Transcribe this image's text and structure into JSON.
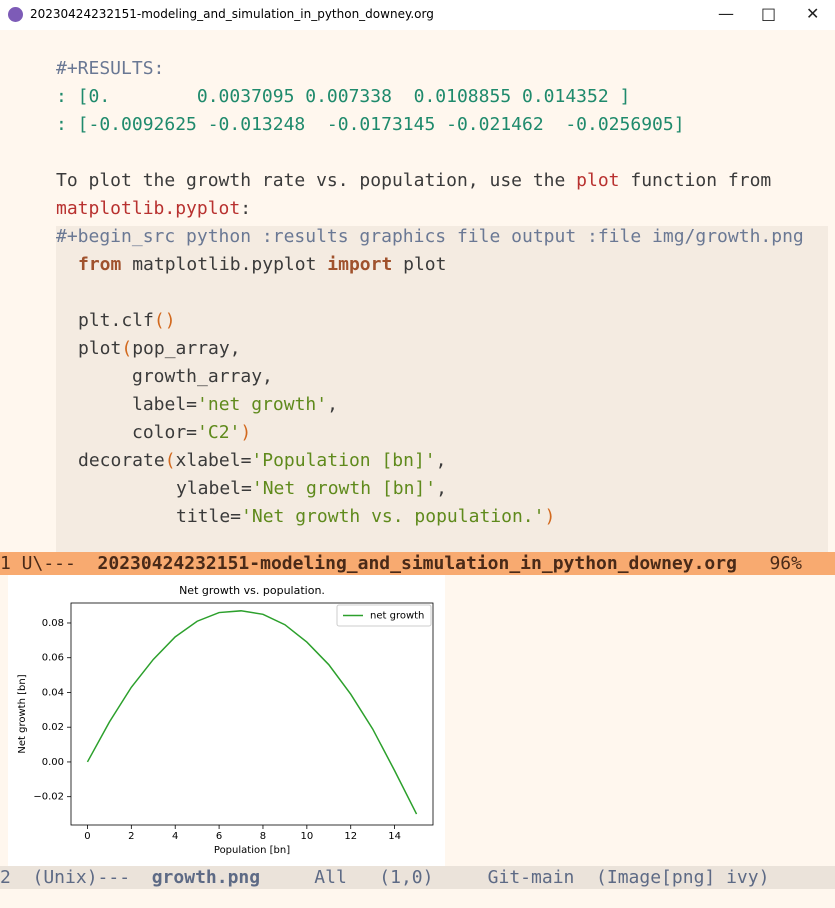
{
  "window": {
    "title": "20230424232151-modeling_and_simulation_in_python_downey.org"
  },
  "buffer": {
    "lines": [
      [
        "#+RESULTS:"
      ],
      [
        ": [0.        0.0037095 0.007338  0.0108855 0.014352 ]"
      ],
      [
        ": [-0.0092625 -0.013248  -0.0173145 -0.021462  -0.0256905]"
      ],
      [
        "To plot the growth rate vs. population, use the ",
        "plot",
        " function from"
      ],
      [
        "matplotlib.pyplot",
        ":"
      ],
      [
        "#+begin_src python :results graphics file output :file img/growth.png"
      ],
      [
        "from",
        " matplotlib.pyplot ",
        "import",
        " plot"
      ],
      [
        "plt.clf",
        "()"
      ],
      [
        "plot",
        "(",
        "pop_array,"
      ],
      [
        "growth_array,"
      ],
      [
        "label=",
        "'net growth'",
        ","
      ],
      [
        "color=",
        "'C2'",
        ")"
      ],
      [
        "decorate",
        "(",
        "xlabel=",
        "'Population [bn]'",
        ","
      ],
      [
        "ylabel=",
        "'Net growth [bn]'",
        ","
      ],
      [
        "title=",
        "'Net growth vs. population.'",
        ")"
      ]
    ]
  },
  "mode_lines": [
    [
      "1 U\\---  ",
      "20230424232151-modeling_and_simulation_in_python_downey.org",
      "   96%"
    ],
    [
      "2  (Unix)---  ",
      "growth.png",
      "     All   (1,0)     Git-main  (Image[png] ivy)"
    ]
  ],
  "chart_data": {
    "type": "line",
    "title": "Net growth vs. population.",
    "x_label": "Population [bn]",
    "y_label": "Net growth [bn]",
    "x": [
      0,
      1,
      2,
      3,
      4,
      5,
      6,
      7,
      8,
      9,
      10,
      11,
      12,
      13,
      14,
      15
    ],
    "series": [
      {
        "name": "net growth",
        "color": "#2ca02c",
        "values": [
          0,
          0.023,
          0.043,
          0.059,
          0.072,
          0.081,
          0.086,
          0.087,
          0.085,
          0.079,
          0.069,
          0.056,
          0.039,
          0.019,
          -0.005,
          -0.03
        ]
      }
    ],
    "xlim": [
      -0.75,
      15.75
    ],
    "xticks": [
      0,
      2,
      4,
      6,
      8,
      10,
      12,
      14
    ],
    "ylim": [
      -0.0363,
      0.0915
    ],
    "yticks": [
      {
        "value": -0.02,
        "label": "−0.02"
      },
      {
        "value": 0,
        "label": "0.00"
      },
      {
        "value": 0.02,
        "label": "0.02"
      },
      {
        "value": 0.04,
        "label": "0.04"
      },
      {
        "value": 0.06,
        "label": "0.06"
      },
      {
        "value": 0.08,
        "label": "0.08"
      }
    ],
    "legend": "upper right"
  }
}
